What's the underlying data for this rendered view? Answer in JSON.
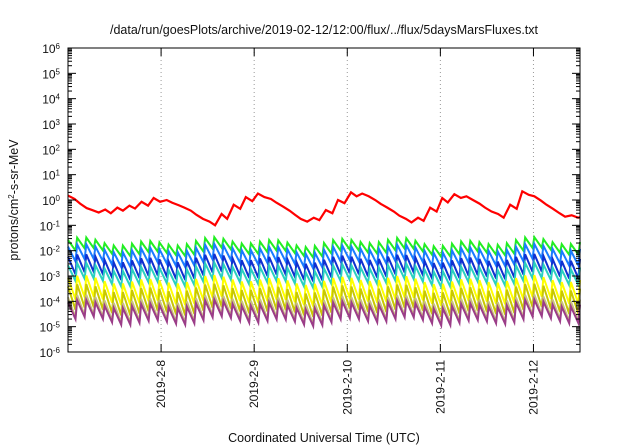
{
  "chart_data": {
    "type": "line",
    "title": "/data/run/goesPlots/archive/2019-02-12/12:00/flux/../flux/5daysMarsFluxes.txt",
    "xlabel": "Coordinated Universal Time (UTC)",
    "ylabel_parts": [
      "protons/cm",
      "2",
      "-s-sr-MeV"
    ],
    "y_scale": "log",
    "x_range_days": [
      0,
      5.5
    ],
    "ylim": [
      1e-06,
      1000000.0
    ],
    "y_ticks": [
      {
        "base": "10",
        "exp": "6",
        "value": 1000000.0
      },
      {
        "base": "10",
        "exp": "5",
        "value": 100000.0
      },
      {
        "base": "10",
        "exp": "4",
        "value": 10000.0
      },
      {
        "base": "10",
        "exp": "3",
        "value": 1000.0
      },
      {
        "base": "10",
        "exp": "2",
        "value": 100.0
      },
      {
        "base": "10",
        "exp": "1",
        "value": 10.0
      },
      {
        "base": "10",
        "exp": "0",
        "value": 1.0
      },
      {
        "base": "10",
        "exp": "-1",
        "value": 0.1
      },
      {
        "base": "10",
        "exp": "-2",
        "value": 0.01
      },
      {
        "base": "10",
        "exp": "-3",
        "value": 0.001
      },
      {
        "base": "10",
        "exp": "-4",
        "value": 0.0001
      },
      {
        "base": "10",
        "exp": "-5",
        "value": 1e-05
      },
      {
        "base": "10",
        "exp": "-6",
        "value": 1e-06
      }
    ],
    "x_ticks": [
      {
        "label": "2019-2-8",
        "value": 1
      },
      {
        "label": "2019-2-9",
        "value": 2
      },
      {
        "label": "2019-2-10",
        "value": 3
      },
      {
        "label": "2019-2-11",
        "value": 4
      },
      {
        "label": "2019-2-12",
        "value": 5
      }
    ],
    "grid": "x-only dotted",
    "series": [
      {
        "color": "#ff0000",
        "x": [
          0.0,
          0.07,
          0.13,
          0.2,
          0.26,
          0.33,
          0.4,
          0.46,
          0.53,
          0.59,
          0.66,
          0.72,
          0.79,
          0.86,
          0.92,
          0.99,
          1.06,
          1.12,
          1.19,
          1.25,
          1.32,
          1.38,
          1.45,
          1.52,
          1.58,
          1.65,
          1.71,
          1.78,
          1.85,
          1.91,
          1.98,
          2.04,
          2.11,
          2.18,
          2.24,
          2.31,
          2.38,
          2.44,
          2.5,
          2.57,
          2.64,
          2.7,
          2.77,
          2.84,
          2.9,
          2.97,
          3.04,
          3.1,
          3.16,
          3.23,
          3.3,
          3.36,
          3.43,
          3.5,
          3.56,
          3.63,
          3.69,
          3.76,
          3.82,
          3.89,
          3.96,
          4.02,
          4.08,
          4.15,
          4.22,
          4.28,
          4.35,
          4.42,
          4.48,
          4.55,
          4.62,
          4.68,
          4.75,
          4.82,
          4.88,
          4.95,
          5.01,
          5.08,
          5.14,
          5.21,
          5.28,
          5.34,
          5.41,
          5.48,
          5.5
        ],
        "values": [
          1.5,
          1.1,
          0.72,
          0.48,
          0.4,
          0.32,
          0.42,
          0.3,
          0.5,
          0.38,
          0.6,
          0.46,
          0.85,
          0.6,
          1.2,
          0.85,
          1.0,
          0.78,
          0.62,
          0.5,
          0.38,
          0.26,
          0.18,
          0.14,
          0.1,
          0.28,
          0.18,
          0.65,
          0.45,
          1.3,
          0.9,
          1.8,
          1.3,
          1.1,
          0.78,
          0.55,
          0.38,
          0.26,
          0.18,
          0.14,
          0.2,
          0.16,
          0.4,
          0.3,
          1.0,
          0.75,
          2.0,
          1.4,
          1.8,
          1.4,
          1.0,
          0.7,
          0.5,
          0.35,
          0.24,
          0.18,
          0.13,
          0.2,
          0.15,
          0.5,
          0.35,
          1.2,
          0.8,
          1.7,
          1.2,
          1.4,
          1.0,
          0.72,
          0.5,
          0.35,
          0.28,
          0.2,
          0.65,
          0.45,
          2.2,
          1.6,
          1.4,
          0.95,
          0.65,
          0.45,
          0.3,
          0.22,
          0.25,
          0.2,
          0.21
        ]
      },
      {
        "color": "#22ee22",
        "base": 0.022,
        "dip": 0.38,
        "teeth": 56
      },
      {
        "color": "#1a7cff",
        "base": 0.012,
        "dip": 0.26,
        "teeth": 56
      },
      {
        "color": "#1030d0",
        "base": 0.0048,
        "dip": 0.2,
        "teeth": 56
      },
      {
        "color": "#2ad0c0",
        "base": 0.0022,
        "dip": 0.24,
        "teeth": 56
      },
      {
        "color": "#ffff00",
        "base": 0.0007,
        "dip": 0.14,
        "teeth": 56
      },
      {
        "color": "#c8c800",
        "base": 0.00032,
        "dip": 0.12,
        "teeth": 56
      },
      {
        "color": "#c8c080",
        "base": 0.00012,
        "dip": 0.16,
        "teeth": 56
      },
      {
        "color": "#9b3d88",
        "base": 7.5e-05,
        "dip": 0.22,
        "teeth": 56
      }
    ]
  }
}
